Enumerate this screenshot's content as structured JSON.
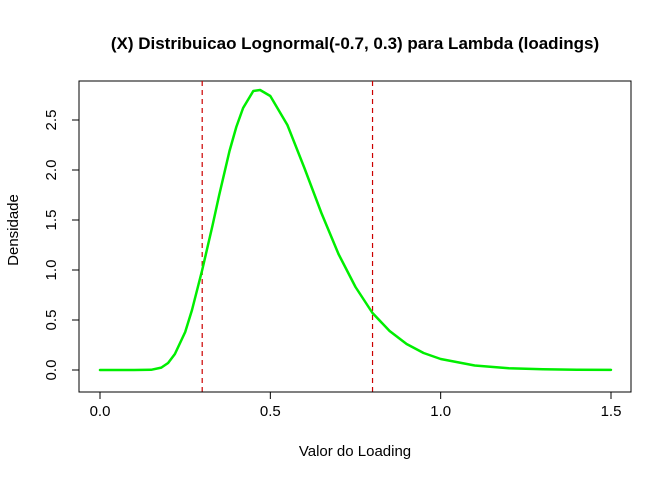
{
  "chart_data": {
    "type": "line",
    "title": "(X) Distribuicao Lognormal(-0.7, 0.3) para Lambda (loadings)",
    "xlabel": "Valor do Loading",
    "ylabel": "Densidade",
    "xlim": [
      0.0,
      1.5
    ],
    "ylim": [
      0.0,
      2.8
    ],
    "x_ticks": [
      0.0,
      0.5,
      1.0,
      1.5
    ],
    "x_tick_labels": [
      "0.0",
      "0.5",
      "1.0",
      "1.5"
    ],
    "y_ticks": [
      0.0,
      0.5,
      1.0,
      1.5,
      2.0,
      2.5
    ],
    "y_tick_labels": [
      "0.0",
      "0.5",
      "1.0",
      "1.5",
      "2.0",
      "2.5"
    ],
    "grid": false,
    "series": [
      {
        "color": "#00ee00",
        "x": [
          0.0,
          0.1,
          0.15,
          0.18,
          0.2,
          0.22,
          0.25,
          0.27,
          0.3,
          0.33,
          0.35,
          0.38,
          0.4,
          0.42,
          0.45,
          0.47,
          0.5,
          0.55,
          0.6,
          0.65,
          0.7,
          0.75,
          0.8,
          0.85,
          0.9,
          0.95,
          1.0,
          1.1,
          1.2,
          1.3,
          1.4,
          1.5
        ],
        "y": [
          0.0,
          0.0,
          0.002,
          0.024,
          0.07,
          0.16,
          0.38,
          0.6,
          1.0,
          1.44,
          1.75,
          2.19,
          2.43,
          2.62,
          2.79,
          2.8,
          2.74,
          2.45,
          2.02,
          1.57,
          1.16,
          0.83,
          0.57,
          0.39,
          0.26,
          0.17,
          0.11,
          0.045,
          0.018,
          0.007,
          0.003,
          0.001
        ]
      }
    ],
    "vlines": [
      {
        "x": 0.3,
        "color": "#cc0000",
        "style": "dashed"
      },
      {
        "x": 0.8,
        "color": "#cc0000",
        "style": "dashed"
      }
    ]
  }
}
